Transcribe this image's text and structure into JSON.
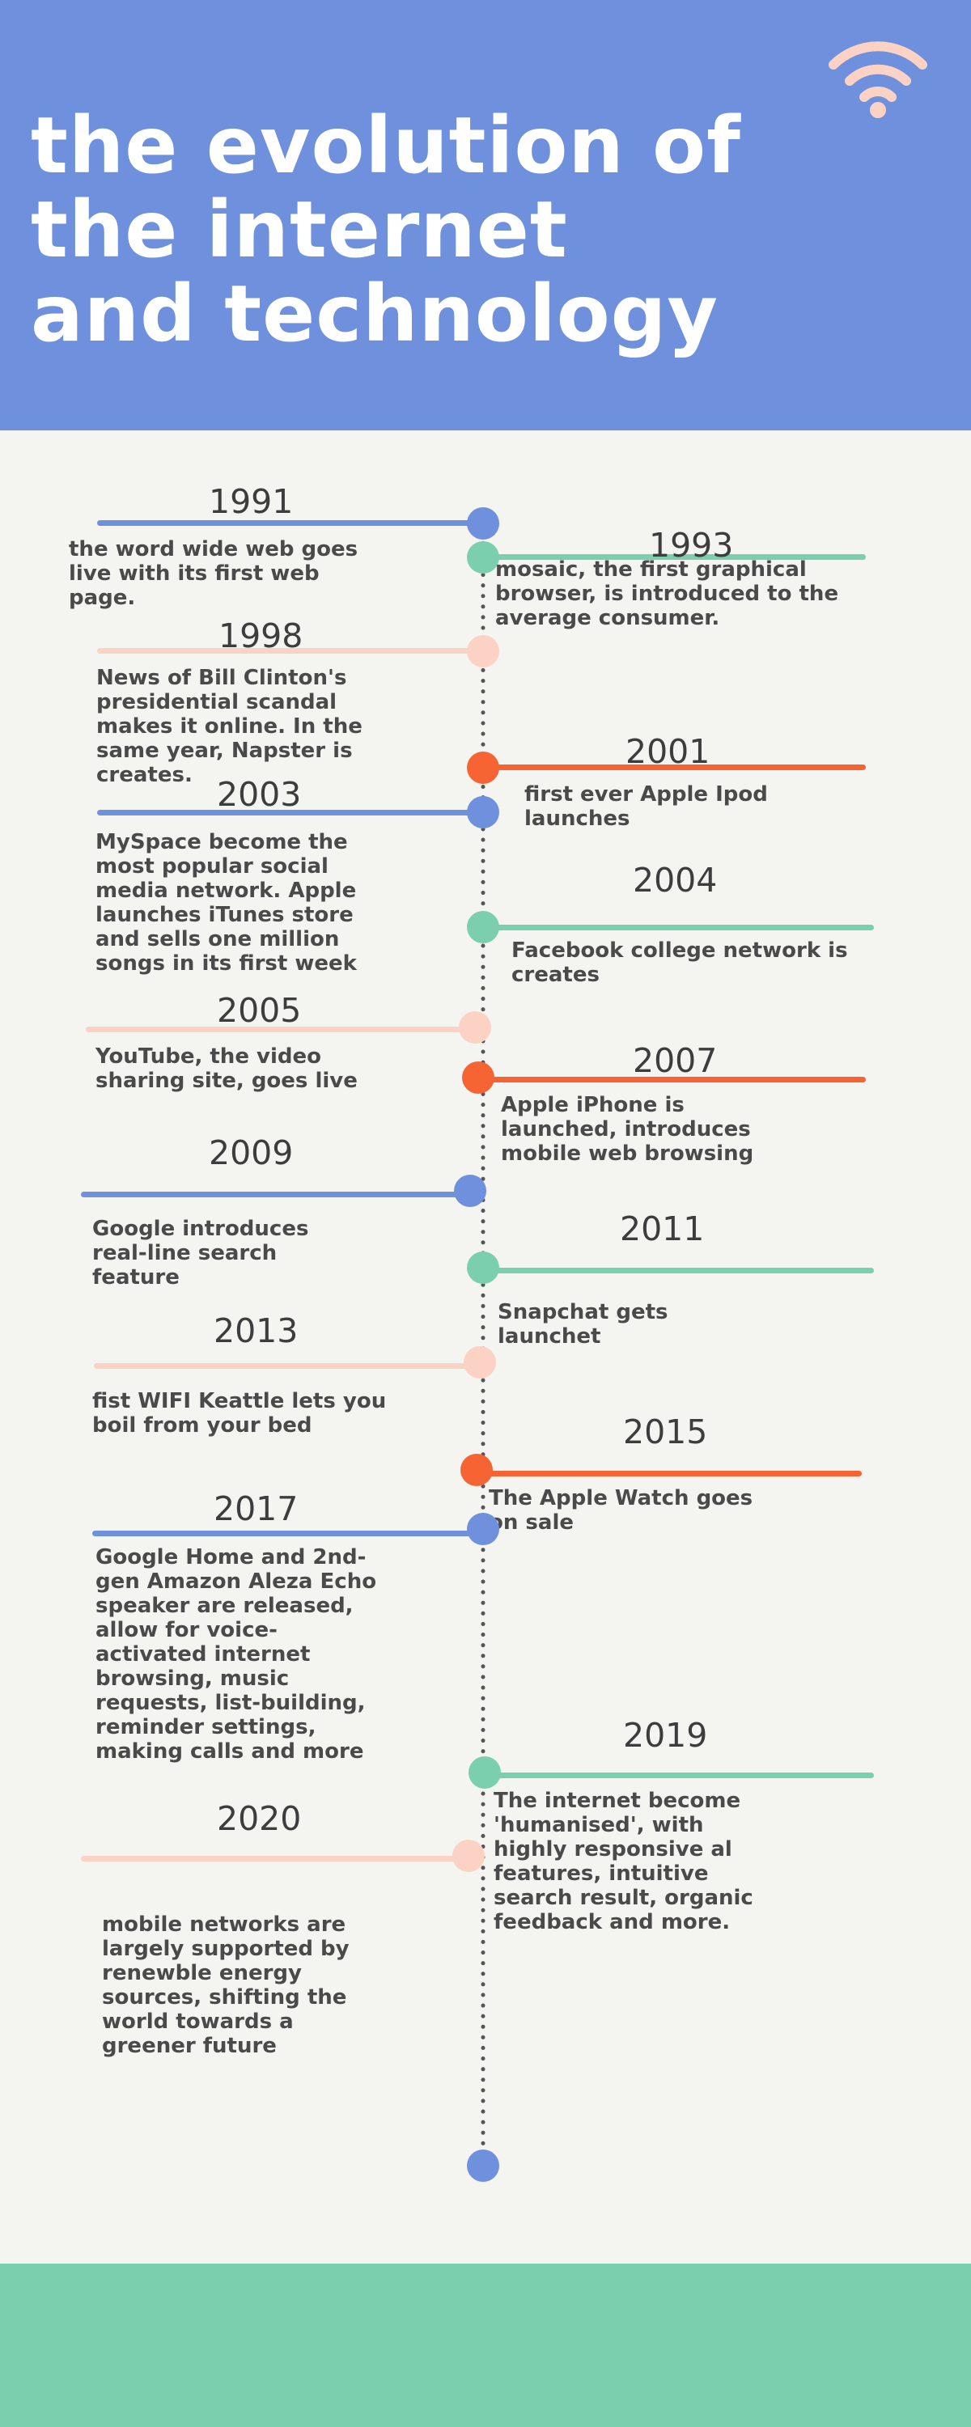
{
  "title_lines": [
    "the evolution of",
    "the internet",
    "and technology"
  ],
  "colors": {
    "header_bg": "#6e90dd",
    "page_bg": "#f4f4f0",
    "footer_bg": "#7bcfae",
    "blue": "#6e90dd",
    "green": "#7bcfae",
    "peach": "#fcd2c5",
    "orange": "#f76434",
    "wifi_icon": "#fcd2c5",
    "timeline_dots": "#555555"
  },
  "icon": "wifi-icon",
  "events": [
    {
      "year": "1991",
      "text": "the word wide web goes live with its first web page.",
      "color": "blue"
    },
    {
      "year": "1993",
      "text": "mosaic, the first graphical browser, is introduced to the average consumer.",
      "color": "green"
    },
    {
      "year": "1998",
      "text": "News of Bill Clinton's presidential scandal makes it online. In the same year, Napster is creates.",
      "color": "peach"
    },
    {
      "year": "2001",
      "text": "first ever Apple Ipod launches",
      "color": "orange"
    },
    {
      "year": "2003",
      "text": "MySpace become the most popular social media network. Apple launches iTunes store and sells one million songs in its first week",
      "color": "blue"
    },
    {
      "year": "2004",
      "text": "Facebook college network is creates",
      "color": "green"
    },
    {
      "year": "2005",
      "text": "YouTube, the video sharing site, goes live",
      "color": "peach"
    },
    {
      "year": "2007",
      "text": "Apple iPhone is launched, introduces mobile web browsing",
      "color": "orange"
    },
    {
      "year": "2009",
      "text": "Google introduces real-line search feature",
      "color": "blue"
    },
    {
      "year": "2011",
      "text": "Snapchat gets launchet",
      "color": "green"
    },
    {
      "year": "2013",
      "text": "fist WIFI Keattle lets you boil from your bed",
      "color": "peach"
    },
    {
      "year": "2015",
      "text": "The Apple Watch goes on sale",
      "color": "orange"
    },
    {
      "year": "2017",
      "text": "Google Home and 2nd-gen Amazon Aleza Echo speaker are released, allow for voice-activated internet browsing, music requests, list-building, reminder settings, making calls and more",
      "color": "blue"
    },
    {
      "year": "2019",
      "text": "The internet become 'humanised', with highly responsive al features, intuitive search result, organic feedback and more.",
      "color": "green"
    },
    {
      "year": "2020",
      "text": "mobile networks are largely supported by renewble energy sources, shifting the world towards a greener future",
      "color": "peach"
    }
  ]
}
